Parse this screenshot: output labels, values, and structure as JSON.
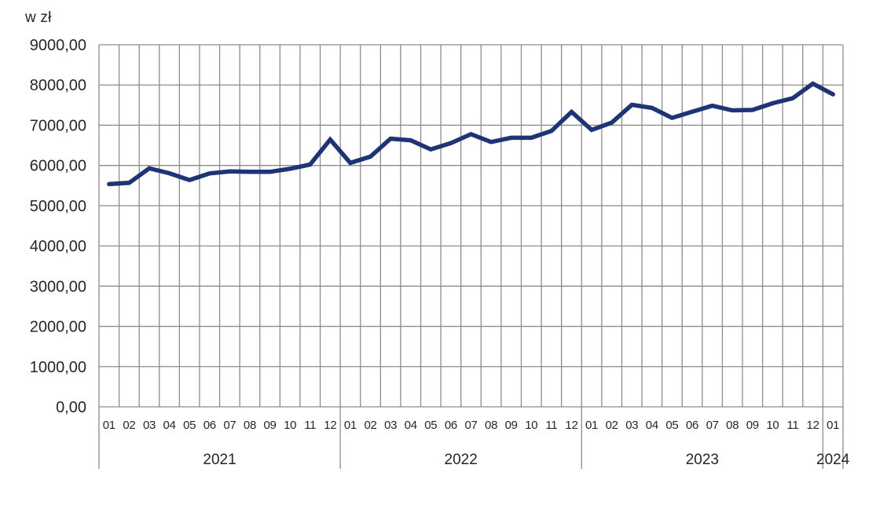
{
  "page": {
    "background_color": "#ffffff"
  },
  "chart_data": {
    "type": "line",
    "title": "",
    "ylabel": "w zł",
    "xlabel": "",
    "ylim": [
      0,
      9000
    ],
    "ytick_step": 1000,
    "ytick_labels_top_down": [
      "9000,00",
      "8000,00",
      "7000,00",
      "6000,00",
      "5000,00",
      "4000,00",
      "3000,00",
      "2000,00",
      "1000,00",
      "0,00"
    ],
    "x_month_labels": [
      "01",
      "02",
      "03",
      "04",
      "05",
      "06",
      "07",
      "08",
      "09",
      "10",
      "11",
      "12",
      "01",
      "02",
      "03",
      "04",
      "05",
      "06",
      "07",
      "08",
      "09",
      "10",
      "11",
      "12",
      "01",
      "02",
      "03",
      "04",
      "05",
      "06",
      "07",
      "08",
      "09",
      "10",
      "11",
      "12",
      "01"
    ],
    "year_groups": [
      {
        "label": "2021",
        "months": 12
      },
      {
        "label": "2022",
        "months": 12
      },
      {
        "label": "2023",
        "months": 12
      },
      {
        "label": "2024",
        "months": 1
      }
    ],
    "values": [
      5536.8,
      5568.82,
      5929.05,
      5805.72,
      5637.34,
      5802.42,
      5851.87,
      5843.75,
      5841.16,
      5917.15,
      6022.49,
      6644.39,
      6064.24,
      6220.04,
      6665.64,
      6626.95,
      6399.59,
      6554.87,
      6778.63,
      6583.03,
      6687.81,
      6687.92,
      6857.96,
      7329.96,
      6883.96,
      7065.56,
      7508.34,
      7430.65,
      7181.67,
      7335.2,
      7485.12,
      7368.97,
      7379.88,
      7544.98,
      7670.19,
      8032.96,
      7768.35
    ],
    "grid": true,
    "legend": "none",
    "line_color": "#1f3474",
    "grid_color": "#8c8c8c",
    "axis_text_color": "#262626"
  }
}
